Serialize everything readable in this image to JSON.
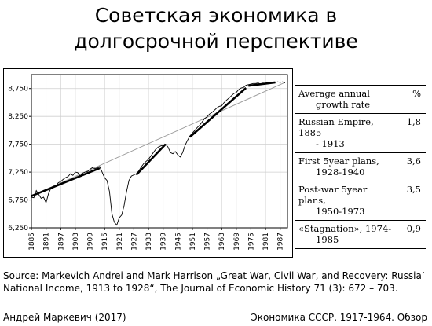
{
  "slide": {
    "title_line1": "Советская экономика в",
    "title_line2": "долгосрочной перспективе",
    "source": "Source: Markevich Andrei and Mark Harrison „Great War, Civil War, and Recovery: Russia’ National Income, 1913 to 1928“, The Journal of Economic History 71 (3): 672 – 703.",
    "author": "Андрей Маркевич (2017)",
    "footer_title": "Экономика СССР, 1917-1964. Обзор"
  },
  "table": {
    "header": {
      "label_line1": "Average annual",
      "label_line2": "growth rate",
      "unit": "%"
    },
    "rows": [
      {
        "line1": "Russian Empire, 1885",
        "line2": "- 1913",
        "value": "1,8"
      },
      {
        "line1": "First 5year plans,",
        "line2": "1928-1940",
        "value": "3,6"
      },
      {
        "line1": "Post-war 5year plans,",
        "line2": "1950-1973",
        "value": "3,5"
      },
      {
        "line1": "«Stagnation», 1974-",
        "line2": "1985",
        "value": "0,9"
      }
    ]
  },
  "colors": {
    "series": "#000000",
    "trend": "#9a9a9a",
    "grid": "#cfcfcf"
  },
  "chart_data": {
    "type": "line",
    "title": "",
    "xlabel": "",
    "ylabel": "",
    "xlim": [
      1885,
      1990
    ],
    "ylim": [
      6250,
      9000
    ],
    "x_ticks": [
      1885,
      1891,
      1897,
      1903,
      1909,
      1915,
      1921,
      1927,
      1933,
      1939,
      1945,
      1951,
      1957,
      1963,
      1969,
      1975,
      1981,
      1987
    ],
    "y_ticks": [
      6250,
      6750,
      7250,
      7750,
      8250,
      8750
    ],
    "y_tick_labels": [
      "6,250",
      "6,750",
      "7,250",
      "7,750",
      "8,250",
      "8,750"
    ],
    "grid": true,
    "series": [
      {
        "role": "actual",
        "points": [
          [
            1885,
            6800
          ],
          [
            1886,
            6790
          ],
          [
            1887,
            6920
          ],
          [
            1888,
            6850
          ],
          [
            1889,
            6780
          ],
          [
            1890,
            6800
          ],
          [
            1891,
            6700
          ],
          [
            1892,
            6860
          ],
          [
            1893,
            6960
          ],
          [
            1894,
            7000
          ],
          [
            1895,
            6990
          ],
          [
            1896,
            7060
          ],
          [
            1897,
            7080
          ],
          [
            1898,
            7120
          ],
          [
            1899,
            7150
          ],
          [
            1900,
            7170
          ],
          [
            1901,
            7220
          ],
          [
            1902,
            7190
          ],
          [
            1903,
            7250
          ],
          [
            1904,
            7240
          ],
          [
            1905,
            7180
          ],
          [
            1906,
            7230
          ],
          [
            1907,
            7250
          ],
          [
            1908,
            7260
          ],
          [
            1909,
            7300
          ],
          [
            1910,
            7330
          ],
          [
            1911,
            7310
          ],
          [
            1912,
            7330
          ],
          [
            1913,
            7350
          ],
          [
            1914,
            7250
          ],
          [
            1915,
            7150
          ],
          [
            1916,
            7100
          ],
          [
            1917,
            6900
          ],
          [
            1918,
            6500
          ],
          [
            1919,
            6350
          ],
          [
            1920,
            6300
          ],
          [
            1921,
            6430
          ],
          [
            1922,
            6480
          ],
          [
            1923,
            6650
          ],
          [
            1924,
            6900
          ],
          [
            1925,
            7100
          ],
          [
            1926,
            7180
          ],
          [
            1927,
            7200
          ],
          [
            1928,
            7220
          ],
          [
            1929,
            7270
          ],
          [
            1930,
            7340
          ],
          [
            1931,
            7400
          ],
          [
            1932,
            7440
          ],
          [
            1933,
            7480
          ],
          [
            1934,
            7540
          ],
          [
            1935,
            7600
          ],
          [
            1936,
            7660
          ],
          [
            1937,
            7700
          ],
          [
            1938,
            7720
          ],
          [
            1939,
            7730
          ],
          [
            1940,
            7750
          ],
          [
            1941,
            7700
          ],
          [
            1942,
            7600
          ],
          [
            1943,
            7580
          ],
          [
            1944,
            7620
          ],
          [
            1945,
            7560
          ],
          [
            1946,
            7520
          ],
          [
            1947,
            7600
          ],
          [
            1948,
            7730
          ],
          [
            1949,
            7820
          ],
          [
            1950,
            7900
          ],
          [
            1951,
            7950
          ],
          [
            1952,
            8000
          ],
          [
            1953,
            8050
          ],
          [
            1954,
            8090
          ],
          [
            1955,
            8150
          ],
          [
            1956,
            8210
          ],
          [
            1957,
            8240
          ],
          [
            1958,
            8290
          ],
          [
            1959,
            8320
          ],
          [
            1960,
            8360
          ],
          [
            1961,
            8400
          ],
          [
            1962,
            8430
          ],
          [
            1963,
            8440
          ],
          [
            1964,
            8500
          ],
          [
            1965,
            8540
          ],
          [
            1966,
            8580
          ],
          [
            1967,
            8620
          ],
          [
            1968,
            8660
          ],
          [
            1969,
            8680
          ],
          [
            1970,
            8730
          ],
          [
            1971,
            8760
          ],
          [
            1972,
            8770
          ],
          [
            1973,
            8810
          ],
          [
            1974,
            8820
          ],
          [
            1975,
            8830
          ],
          [
            1976,
            8840
          ],
          [
            1977,
            8840
          ],
          [
            1978,
            8850
          ],
          [
            1979,
            8830
          ],
          [
            1980,
            8850
          ],
          [
            1981,
            8830
          ],
          [
            1982,
            8840
          ],
          [
            1983,
            8840
          ],
          [
            1984,
            8850
          ],
          [
            1985,
            8860
          ],
          [
            1986,
            8870
          ],
          [
            1987,
            8860
          ],
          [
            1988,
            8870
          ],
          [
            1989,
            8850
          ]
        ]
      },
      {
        "role": "trend",
        "points": [
          [
            1885,
            6820
          ],
          [
            1989,
            8860
          ]
        ]
      },
      {
        "role": "fit",
        "period": "1885-1913",
        "points": [
          [
            1885,
            6820
          ],
          [
            1913,
            7320
          ]
        ]
      },
      {
        "role": "fit",
        "period": "1928-1940",
        "points": [
          [
            1928,
            7200
          ],
          [
            1940,
            7750
          ]
        ]
      },
      {
        "role": "fit",
        "period": "1950-1973",
        "points": [
          [
            1950,
            7880
          ],
          [
            1973,
            8760
          ]
        ]
      },
      {
        "role": "fit",
        "period": "1974-1985",
        "points": [
          [
            1974,
            8800
          ],
          [
            1985,
            8860
          ]
        ]
      }
    ]
  }
}
